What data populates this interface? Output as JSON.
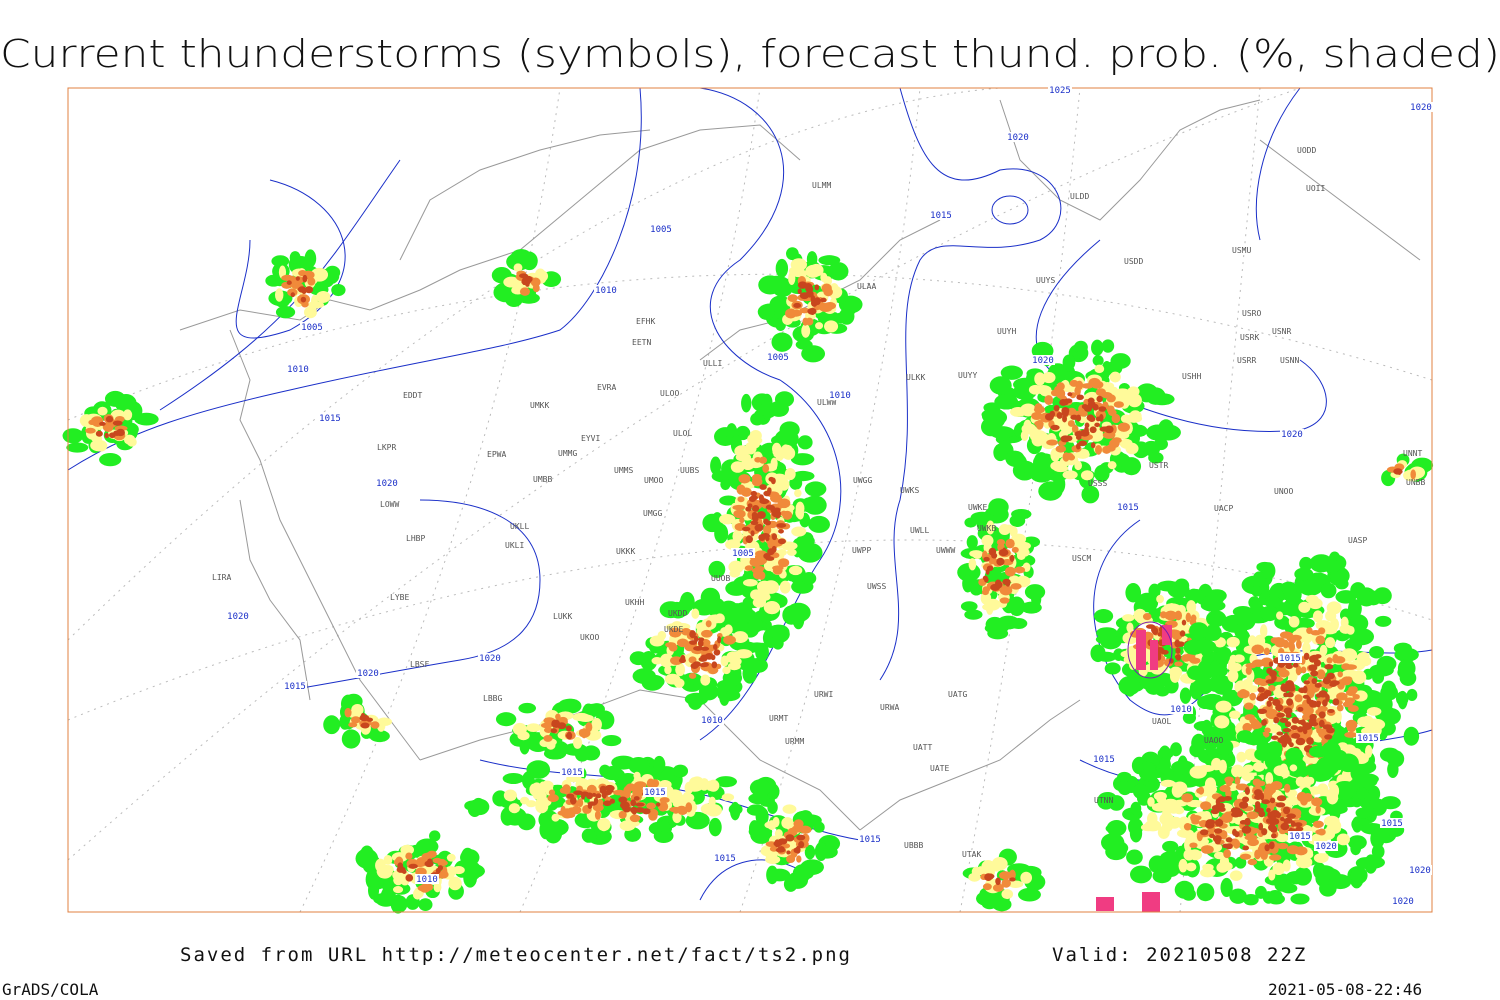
{
  "title": "Current thunderstorms (symbols), forecast thund. prob. (%, shaded)",
  "footer": {
    "source": "Saved from URL http://meteocenter.net/fact/ts2.png",
    "valid": "Valid: 20210508 22Z",
    "software": "GrADS/COLA",
    "timestamp": "2021-05-08-22:46"
  },
  "stations": [
    "EDDT",
    "LKPR",
    "LOWW",
    "LHBP",
    "LIRA",
    "LYBE",
    "LBSF",
    "LBBG",
    "EPWA",
    "UMKK",
    "UMMG",
    "UMBB",
    "EYVI",
    "EVRA",
    "EETN",
    "EFHK",
    "ULLI",
    "ULOO",
    "ULOL",
    "UMMS",
    "UMOO",
    "UUBS",
    "UMGG",
    "UKLL",
    "UKLI",
    "UKKK",
    "UUOB",
    "UKHH",
    "UKDD",
    "UKOO",
    "LUKK",
    "UKDE",
    "ULWW",
    "UWGG",
    "UWPP",
    "UWSS",
    "URWI",
    "URMT",
    "URMM",
    "UATG",
    "URWA",
    "UATT",
    "UATE",
    "UTNN",
    "UBBB",
    "UTAK",
    "UAOL",
    "UAOO",
    "USCM",
    "USSS",
    "USTR",
    "UNOO",
    "UACP",
    "UASP",
    "USHH",
    "USRR",
    "USNN",
    "USRK",
    "USNR",
    "USRO",
    "USMU",
    "USDD",
    "UUYS",
    "UUYH",
    "UUYY",
    "ULAA",
    "ULMM",
    "ULDD",
    "UODD",
    "UOII",
    "UWKE",
    "UWKB",
    "UWWW",
    "UWKS",
    "UWLL",
    "UNNT",
    "UNBB",
    "ULKK"
  ],
  "isobar_labels": [
    "1025",
    "1020",
    "1020",
    "1015",
    "1005",
    "1010",
    "1005",
    "1010",
    "1015",
    "1020",
    "1020",
    "1020",
    "1005",
    "1010",
    "1005",
    "1015",
    "1020",
    "1020",
    "1020",
    "1015",
    "1015",
    "1015",
    "1010",
    "1015",
    "1010",
    "1015",
    "1015",
    "1015",
    "1015",
    "1020",
    "1020",
    "1020",
    "1015",
    "1015",
    "1010"
  ]
}
